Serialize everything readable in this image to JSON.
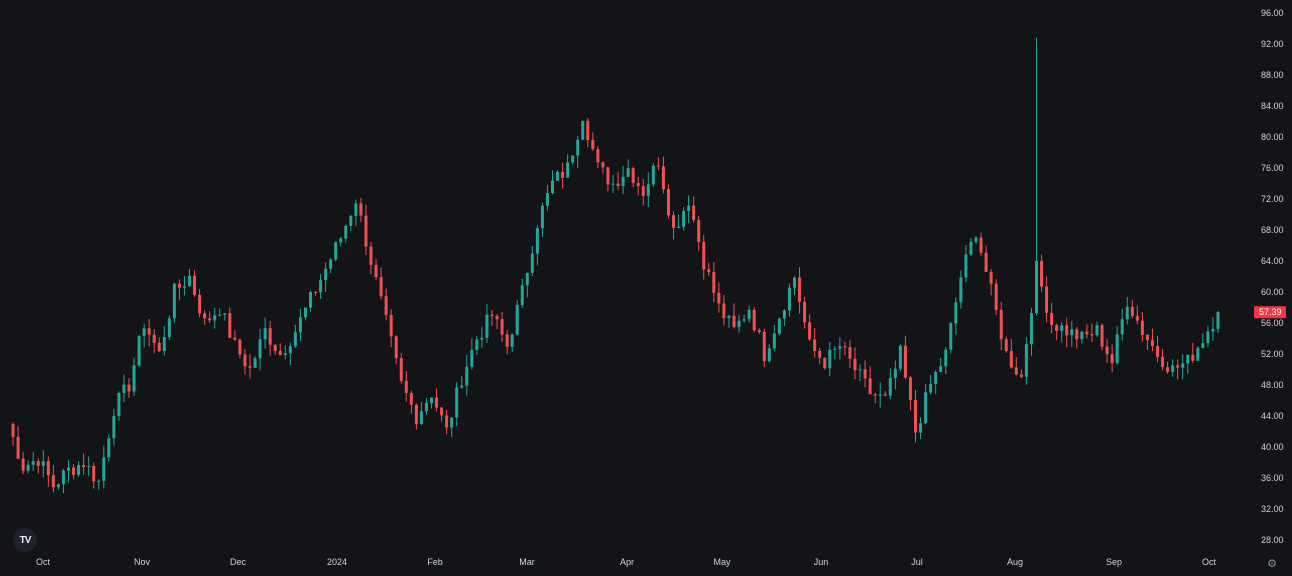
{
  "chart_data": {
    "type": "candlestick",
    "ylim": [
      28,
      96
    ],
    "y_ticks": [
      "28.00",
      "32.00",
      "36.00",
      "40.00",
      "44.00",
      "48.00",
      "52.00",
      "56.00",
      "60.00",
      "64.00",
      "68.00",
      "72.00",
      "76.00",
      "80.00",
      "84.00",
      "88.00",
      "92.00",
      "96.00"
    ],
    "x_ticks": [
      "Oct",
      "Nov",
      "Dec",
      "2024",
      "Feb",
      "Mar",
      "Apr",
      "May",
      "Jun",
      "Jul",
      "Aug",
      "Sep",
      "Oct"
    ],
    "last_price": "57.39",
    "colors": {
      "up": "#26a69a",
      "down": "#ef5350",
      "background": "#131417",
      "badge": "#f23645",
      "text": "#d1d4dc"
    },
    "close_series": [
      {
        "x": "Oct",
        "close": 43
      },
      {
        "x": "",
        "close": 37.5
      },
      {
        "x": "",
        "close": 38.5
      },
      {
        "x": "",
        "close": 35
      },
      {
        "x": "",
        "close": 37
      },
      {
        "x": "",
        "close": 38
      },
      {
        "x": "",
        "close": 35.5
      },
      {
        "x": "Nov",
        "close": 45
      },
      {
        "x": "",
        "close": 48
      },
      {
        "x": "",
        "close": 56
      },
      {
        "x": "",
        "close": 52
      },
      {
        "x": "",
        "close": 60
      },
      {
        "x": "",
        "close": 62
      },
      {
        "x": "",
        "close": 56
      },
      {
        "x": "",
        "close": 58
      },
      {
        "x": "Dec",
        "close": 53
      },
      {
        "x": "",
        "close": 50
      },
      {
        "x": "",
        "close": 55
      },
      {
        "x": "",
        "close": 52
      },
      {
        "x": "",
        "close": 55
      },
      {
        "x": "",
        "close": 59
      },
      {
        "x": "",
        "close": 63
      },
      {
        "x": "",
        "close": 67
      },
      {
        "x": "2024",
        "close": 72
      },
      {
        "x": "",
        "close": 64
      },
      {
        "x": "",
        "close": 56
      },
      {
        "x": "",
        "close": 48
      },
      {
        "x": "",
        "close": 44
      },
      {
        "x": "",
        "close": 47
      },
      {
        "x": "Feb",
        "close": 42
      },
      {
        "x": "",
        "close": 49
      },
      {
        "x": "",
        "close": 54
      },
      {
        "x": "",
        "close": 57
      },
      {
        "x": "",
        "close": 53
      },
      {
        "x": "",
        "close": 60
      },
      {
        "x": "",
        "close": 69
      },
      {
        "x": "",
        "close": 74
      },
      {
        "x": "Mar",
        "close": 76
      },
      {
        "x": "",
        "close": 83
      },
      {
        "x": "",
        "close": 76
      },
      {
        "x": "",
        "close": 74
      },
      {
        "x": "",
        "close": 76
      },
      {
        "x": "",
        "close": 73
      },
      {
        "x": "Apr",
        "close": 77
      },
      {
        "x": "",
        "close": 68
      },
      {
        "x": "",
        "close": 72
      },
      {
        "x": "",
        "close": 64
      },
      {
        "x": "",
        "close": 58
      },
      {
        "x": "",
        "close": 55
      },
      {
        "x": "May",
        "close": 58
      },
      {
        "x": "",
        "close": 52
      },
      {
        "x": "",
        "close": 57
      },
      {
        "x": "",
        "close": 62
      },
      {
        "x": "",
        "close": 53
      },
      {
        "x": "",
        "close": 51
      },
      {
        "x": "Jun",
        "close": 53
      },
      {
        "x": "",
        "close": 50
      },
      {
        "x": "",
        "close": 47
      },
      {
        "x": "",
        "close": 46
      },
      {
        "x": "",
        "close": 52
      },
      {
        "x": "Jul",
        "close": 42
      },
      {
        "x": "",
        "close": 48
      },
      {
        "x": "",
        "close": 52
      },
      {
        "x": "",
        "close": 62
      },
      {
        "x": "",
        "close": 68
      },
      {
        "x": "",
        "close": 60
      },
      {
        "x": "",
        "close": 52
      },
      {
        "x": "Aug",
        "close": 49
      },
      {
        "x": "",
        "close": 63
      },
      {
        "x": "",
        "close": 56
      },
      {
        "x": "",
        "close": 55
      },
      {
        "x": "",
        "close": 54
      },
      {
        "x": "",
        "close": 55
      },
      {
        "x": "",
        "close": 51
      },
      {
        "x": "Sep",
        "close": 59
      },
      {
        "x": "",
        "close": 55
      },
      {
        "x": "",
        "close": 52
      },
      {
        "x": "",
        "close": 50
      },
      {
        "x": "",
        "close": 51
      },
      {
        "x": "",
        "close": 54
      },
      {
        "x": "Oct",
        "close": 57.4
      }
    ]
  }
}
